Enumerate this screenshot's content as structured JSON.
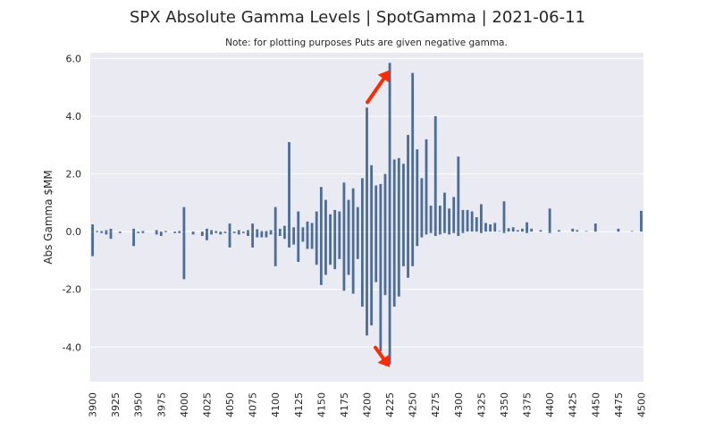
{
  "chart_data": {
    "type": "bar",
    "title": "SPX Absolute Gamma Levels | SpotGamma | 2021-06-11",
    "subtitle": "Note: for plotting purposes Puts are given negative gamma.",
    "xlabel": "",
    "ylabel": "Abs Gamma $MM",
    "x_start": 3900,
    "x_end": 4500,
    "x_step": 5,
    "xlim": [
      3900,
      4500
    ],
    "ylim": [
      -5.2,
      6.2
    ],
    "x_ticks": [
      3900,
      3925,
      3950,
      3975,
      4000,
      4025,
      4050,
      4075,
      4100,
      4125,
      4150,
      4175,
      4200,
      4225,
      4250,
      4275,
      4300,
      4325,
      4350,
      4375,
      4400,
      4425,
      4450,
      4475,
      4500
    ],
    "y_ticks": [
      -4,
      -2,
      0,
      2,
      4,
      6
    ],
    "y_tick_labels": [
      "-4.0",
      "-2.0",
      "0.0",
      "2.0",
      "4.0",
      "6.0"
    ],
    "grid": true,
    "bar_color": "#4c6d99",
    "background_color": "#eaeaf2",
    "annotation_color": "#ff2a00",
    "series": [
      {
        "values": [
          0.25,
          0.02,
          0.02,
          0.05,
          0.1,
          0.0,
          0.0,
          0.0,
          0.0,
          0.1,
          0.0,
          0.02,
          0.0,
          0.0,
          0.05,
          0.0,
          0.02,
          0.0,
          0.0,
          0.02,
          0.85,
          0.0,
          0.0,
          0.0,
          0.0,
          0.1,
          0.05,
          0.02,
          0.0,
          0.0,
          0.28,
          0.0,
          0.05,
          0.0,
          0.05,
          0.28,
          0.08,
          0.02,
          0.02,
          0.05,
          0.85,
          0.1,
          0.2,
          3.1,
          0.15,
          0.7,
          0.15,
          0.35,
          0.3,
          0.7,
          1.55,
          1.1,
          0.6,
          0.75,
          0.7,
          1.7,
          1.1,
          1.5,
          0.85,
          1.85,
          4.3,
          2.3,
          1.6,
          1.65,
          2.0,
          5.85,
          2.5,
          2.55,
          2.35,
          3.35,
          5.5,
          2.85,
          1.85,
          3.2,
          0.9,
          4.0,
          0.9,
          1.35,
          0.8,
          1.2,
          2.6,
          0.75,
          0.75,
          0.7,
          0.5,
          0.95,
          0.3,
          0.25,
          0.3,
          0.02,
          1.05,
          0.12,
          0.15,
          0.05,
          0.1,
          0.32,
          0.1,
          0.0,
          0.05,
          0.0,
          0.8,
          0.0,
          0.05,
          0.0,
          0.0,
          0.1,
          0.05,
          0.0,
          0.02,
          0.0,
          0.28,
          0.0,
          0.0,
          0.0,
          0.0,
          0.1,
          0.0,
          0.0,
          0.02,
          0.0,
          0.72
        ]
      },
      {
        "values": [
          -0.85,
          -0.02,
          -0.05,
          -0.1,
          -0.25,
          0.0,
          -0.05,
          0.0,
          0.0,
          -0.5,
          -0.05,
          -0.05,
          0.0,
          0.0,
          -0.1,
          -0.15,
          -0.02,
          0.0,
          -0.05,
          -0.05,
          -1.65,
          0.0,
          -0.1,
          0.0,
          -0.15,
          -0.3,
          -0.1,
          -0.05,
          -0.1,
          -0.05,
          -0.55,
          -0.05,
          -0.1,
          -0.05,
          -0.15,
          -0.55,
          -0.2,
          -0.2,
          -0.2,
          -0.1,
          -1.2,
          -0.15,
          -0.25,
          -0.55,
          -0.45,
          -1.05,
          -0.35,
          -0.6,
          -0.6,
          -1.15,
          -1.85,
          -1.5,
          -1.15,
          -1.3,
          -0.95,
          -2.05,
          -1.5,
          -2.15,
          -0.95,
          -2.6,
          -3.6,
          -3.25,
          -1.75,
          -4.15,
          -2.2,
          -4.6,
          -2.6,
          -2.25,
          -1.2,
          -1.6,
          -1.2,
          -0.5,
          -0.2,
          -0.1,
          -0.05,
          -0.15,
          -0.1,
          -0.05,
          -0.1,
          -0.05,
          -0.15,
          -0.05,
          0.0,
          0.0,
          0.0,
          -0.05,
          0.0,
          0.0,
          0.0,
          0.0,
          -0.05,
          0.0,
          0.0,
          0.0,
          0.0,
          -0.05,
          0.0,
          0.0,
          0.0,
          0.0,
          -0.05,
          0.0,
          0.0,
          0.0,
          0.0,
          0.0,
          0.0,
          0.0,
          0.0,
          0.0,
          0.0,
          0.0,
          0.0,
          0.0,
          0.0,
          0.0,
          0.0,
          0.0,
          0.0,
          0.0,
          0.0
        ]
      }
    ],
    "annotations": [
      {
        "type": "arrow",
        "direction": "up",
        "target_x": 4225,
        "target_y": 5.6
      },
      {
        "type": "arrow",
        "direction": "down",
        "target_x": 4225,
        "target_y": -4.7
      }
    ]
  }
}
